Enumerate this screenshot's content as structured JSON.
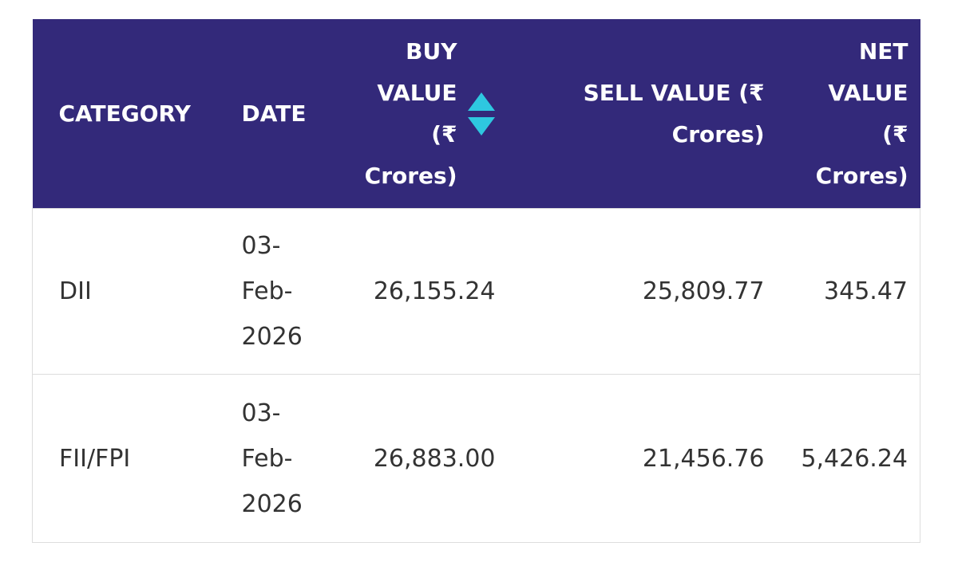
{
  "table": {
    "headers": [
      "CATEGORY",
      "DATE",
      "BUY VALUE (₹ Crores)",
      "SELL VALUE (₹ Crores)",
      "NET VALUE (₹ Crores)"
    ],
    "rows": [
      [
        "DII",
        "03-Feb-2026",
        "26,155.24",
        "25,809.77",
        "345.47"
      ],
      [
        "FII/FPI",
        "03-Feb-2026",
        "26,883.00",
        "21,456.76",
        "5,426.24"
      ]
    ]
  }
}
